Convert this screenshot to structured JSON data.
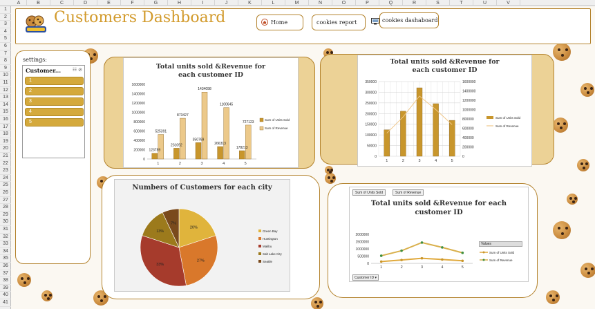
{
  "header": {
    "title": "Customers Dashboard",
    "nav": [
      {
        "label": "Home",
        "icon": "home-icon"
      },
      {
        "label": "cookies report",
        "icon": ""
      },
      {
        "label": "cookies dashaboard",
        "icon": "monitor-icon"
      }
    ]
  },
  "colors": {
    "accent": "#d29a2b",
    "border": "#b3822c",
    "slicer": "#d4a93c"
  },
  "spreadsheet": {
    "columns": [
      "A",
      "B",
      "C",
      "D",
      "E",
      "F",
      "G",
      "H",
      "I",
      "J",
      "K",
      "L",
      "M",
      "N",
      "O",
      "P",
      "Q",
      "R",
      "S",
      "T",
      "U",
      "V"
    ],
    "rows": [
      "1",
      "2",
      "3",
      "4",
      "5",
      "6",
      "7",
      "8",
      "9",
      "10",
      "11",
      "12",
      "13",
      "14",
      "15",
      "16",
      "17",
      "18",
      "19",
      "20",
      "21",
      "22",
      "23",
      "24",
      "25",
      "26",
      "27",
      "28",
      "29",
      "30",
      "31",
      "32",
      "33",
      "34",
      "35",
      "36",
      "37",
      "38",
      "39",
      "40",
      "41"
    ]
  },
  "settings": {
    "label": "settings:",
    "slicer_title": "Customer...",
    "items": [
      "1",
      "2",
      "3",
      "4",
      "5"
    ]
  },
  "chart1": {
    "chart_data": {
      "type": "bar",
      "title": "Total units sold &Revenue for each customer ID",
      "categories": [
        "1",
        "2",
        "3",
        "4",
        "5"
      ],
      "series": [
        {
          "name": "Sum of Units Sold",
          "values": [
            123789,
            231092,
            350769,
            266313,
            178213
          ]
        },
        {
          "name": "Sum of Revenue",
          "values": [
            525391,
            873427,
            1434098,
            1100645,
            727123
          ]
        }
      ],
      "data_labels": [
        "123789",
        "525391",
        "231092",
        "873427",
        "350769",
        "1434098",
        "266313",
        "1100645",
        "178213",
        "727123"
      ],
      "ylim": [
        0,
        1600000
      ],
      "yticks": [
        "1600000",
        "1400000",
        "1200000",
        "1000000",
        "800000",
        "600000",
        "400000",
        "200000",
        "0"
      ]
    }
  },
  "chart2": {
    "chart_data": {
      "type": "bar",
      "title": "Total units sold &Revenue for each customer ID",
      "categories": [
        "1",
        "2",
        "3",
        "4",
        "5"
      ],
      "series": [
        {
          "name": "Sum of Units Sold",
          "values": [
            123789,
            211092,
            320769,
            246313,
            168213
          ]
        },
        {
          "name": "Sum of Revenue",
          "values": [
            495391,
            843427,
            1290000,
            1000645,
            677123
          ]
        }
      ],
      "ylim_left": [
        0,
        350000
      ],
      "ylim_right": [
        0,
        1600000
      ],
      "yticks_left": [
        "350000",
        "300000",
        "250000",
        "200000",
        "150000",
        "100000",
        "50000",
        "0"
      ],
      "yticks_right": [
        "1600000",
        "1400000",
        "1200000",
        "1000000",
        "800000",
        "600000",
        "400000",
        "200000",
        "0"
      ]
    }
  },
  "chart3": {
    "chart_data": {
      "type": "pie",
      "title": "Numbers of Customers for each city",
      "slices": [
        {
          "name": "Green Bay",
          "value": 20,
          "label": "20%",
          "color": "#e0b43c"
        },
        {
          "name": "Huntington",
          "value": 27,
          "label": "27%",
          "color": "#d9782b"
        },
        {
          "name": "Malibu",
          "value": 33,
          "label": "33%",
          "color": "#a63b2c"
        },
        {
          "name": "Salt Lake City",
          "value": 13,
          "label": "13%",
          "color": "#9c7a1c"
        },
        {
          "name": "Seattle",
          "value": 7,
          "label": "7%",
          "color": "#7a4a1c"
        }
      ]
    }
  },
  "chart4": {
    "buttons": [
      "Sum of Units Sold",
      "Sum of Revenue"
    ],
    "filter_button": "Customer ID",
    "legend_title": "Values",
    "chart_data": {
      "type": "line",
      "title": "Total units sold &Revenue for each customer ID",
      "categories": [
        "1",
        "2",
        "3",
        "4",
        "5"
      ],
      "series": [
        {
          "name": "Sum of Units Sold",
          "values": [
            123789,
            231092,
            350769,
            266313,
            178213
          ]
        },
        {
          "name": "Sum of Revenue",
          "values": [
            525391,
            873427,
            1434098,
            1100645,
            727123
          ]
        }
      ],
      "ylim": [
        0,
        2000000
      ],
      "yticks": [
        "2000000",
        "1500000",
        "1000000",
        "500000",
        "0"
      ]
    }
  }
}
